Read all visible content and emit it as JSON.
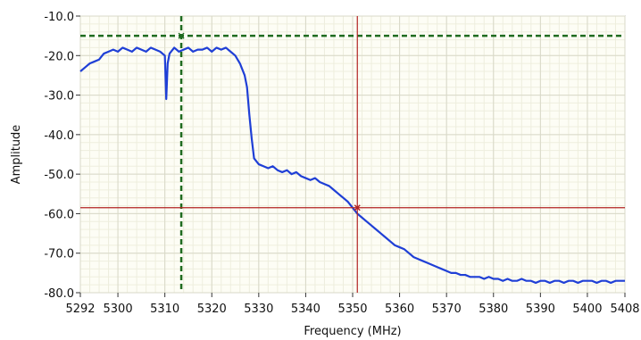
{
  "chart_data": {
    "type": "line",
    "xlabel": "Frequency (MHz)",
    "ylabel": "Amplitude",
    "xlim": [
      5292,
      5408
    ],
    "ylim": [
      -80,
      -10
    ],
    "x_ticks": [
      5292,
      5300,
      5310,
      5320,
      5330,
      5340,
      5350,
      5360,
      5370,
      5380,
      5390,
      5400,
      5408
    ],
    "x_tick_labels": [
      "5292",
      "5300",
      "5310",
      "5320",
      "5330",
      "5340",
      "5350",
      "5360",
      "5370",
      "5380",
      "5390",
      "5400",
      "5408"
    ],
    "y_ticks": [
      -10,
      -20,
      -30,
      -40,
      -50,
      -60,
      -70,
      -80
    ],
    "y_tick_labels": [
      "-10.0",
      "-20.0",
      "-30.0",
      "-40.0",
      "-50.0",
      "-60.0",
      "-70.0",
      "-80.0"
    ],
    "grid": true,
    "series": [
      {
        "color": "#1f3fd6",
        "points": [
          [
            5292,
            -24
          ],
          [
            5293,
            -23
          ],
          [
            5294,
            -22
          ],
          [
            5295,
            -21.5
          ],
          [
            5296,
            -21
          ],
          [
            5297,
            -19.5
          ],
          [
            5298,
            -19
          ],
          [
            5299,
            -18.5
          ],
          [
            5300,
            -19
          ],
          [
            5301,
            -18
          ],
          [
            5302,
            -18.5
          ],
          [
            5303,
            -19
          ],
          [
            5304,
            -18
          ],
          [
            5305,
            -18.5
          ],
          [
            5306,
            -19
          ],
          [
            5307,
            -18
          ],
          [
            5308,
            -18.5
          ],
          [
            5309,
            -19
          ],
          [
            5310,
            -20
          ],
          [
            5310.3,
            -31
          ],
          [
            5310.6,
            -22
          ],
          [
            5311,
            -19.5
          ],
          [
            5312,
            -18
          ],
          [
            5313,
            -19
          ],
          [
            5314,
            -18.5
          ],
          [
            5315,
            -18
          ],
          [
            5316,
            -19
          ],
          [
            5317,
            -18.5
          ],
          [
            5318,
            -18.5
          ],
          [
            5319,
            -18
          ],
          [
            5320,
            -19
          ],
          [
            5321,
            -18
          ],
          [
            5322,
            -18.5
          ],
          [
            5323,
            -18
          ],
          [
            5324,
            -19
          ],
          [
            5325,
            -20
          ],
          [
            5326,
            -22
          ],
          [
            5327,
            -25
          ],
          [
            5327.5,
            -28
          ],
          [
            5328,
            -35
          ],
          [
            5328.5,
            -41
          ],
          [
            5329,
            -46
          ],
          [
            5330,
            -47.5
          ],
          [
            5331,
            -48
          ],
          [
            5332,
            -48.5
          ],
          [
            5333,
            -48
          ],
          [
            5334,
            -49
          ],
          [
            5335,
            -49.5
          ],
          [
            5336,
            -49
          ],
          [
            5337,
            -50
          ],
          [
            5338,
            -49.5
          ],
          [
            5339,
            -50.5
          ],
          [
            5340,
            -51
          ],
          [
            5341,
            -51.5
          ],
          [
            5342,
            -51
          ],
          [
            5343,
            -52
          ],
          [
            5344,
            -52.5
          ],
          [
            5345,
            -53
          ],
          [
            5346,
            -54
          ],
          [
            5347,
            -55
          ],
          [
            5348,
            -56
          ],
          [
            5349,
            -57
          ],
          [
            5350,
            -58.5
          ],
          [
            5351,
            -60
          ],
          [
            5352,
            -61
          ],
          [
            5353,
            -62
          ],
          [
            5354,
            -63
          ],
          [
            5355,
            -64
          ],
          [
            5356,
            -65
          ],
          [
            5357,
            -66
          ],
          [
            5358,
            -67
          ],
          [
            5359,
            -68
          ],
          [
            5360,
            -68.5
          ],
          [
            5361,
            -69
          ],
          [
            5362,
            -70
          ],
          [
            5363,
            -71
          ],
          [
            5364,
            -71.5
          ],
          [
            5365,
            -72
          ],
          [
            5366,
            -72.5
          ],
          [
            5367,
            -73
          ],
          [
            5368,
            -73.5
          ],
          [
            5369,
            -74
          ],
          [
            5370,
            -74.5
          ],
          [
            5371,
            -75
          ],
          [
            5372,
            -75
          ],
          [
            5373,
            -75.5
          ],
          [
            5374,
            -75.5
          ],
          [
            5375,
            -76
          ],
          [
            5376,
            -76
          ],
          [
            5377,
            -76
          ],
          [
            5378,
            -76.5
          ],
          [
            5379,
            -76
          ],
          [
            5380,
            -76.5
          ],
          [
            5381,
            -76.5
          ],
          [
            5382,
            -77
          ],
          [
            5383,
            -76.5
          ],
          [
            5384,
            -77
          ],
          [
            5385,
            -77
          ],
          [
            5386,
            -76.5
          ],
          [
            5387,
            -77
          ],
          [
            5388,
            -77
          ],
          [
            5389,
            -77.5
          ],
          [
            5390,
            -77
          ],
          [
            5391,
            -77
          ],
          [
            5392,
            -77.5
          ],
          [
            5393,
            -77
          ],
          [
            5394,
            -77
          ],
          [
            5395,
            -77.5
          ],
          [
            5396,
            -77
          ],
          [
            5397,
            -77
          ],
          [
            5398,
            -77.5
          ],
          [
            5399,
            -77
          ],
          [
            5400,
            -77
          ],
          [
            5401,
            -77
          ],
          [
            5402,
            -77.5
          ],
          [
            5403,
            -77
          ],
          [
            5404,
            -77
          ],
          [
            5405,
            -77.5
          ],
          [
            5406,
            -77
          ],
          [
            5407,
            -77
          ],
          [
            5408,
            -77
          ]
        ]
      }
    ],
    "cursors": [
      {
        "x": 5313.5,
        "y": -15,
        "color": "#1f6b1f",
        "style": "dashed"
      },
      {
        "x": 5351,
        "y": -58.5,
        "color": "#b22222",
        "style": "solid"
      }
    ],
    "colors": {
      "plot_background": "#fdfdf5",
      "grid_major": "#d8d8c8",
      "grid_minor": "#eeeede",
      "trace": "#1f3fd6"
    }
  }
}
